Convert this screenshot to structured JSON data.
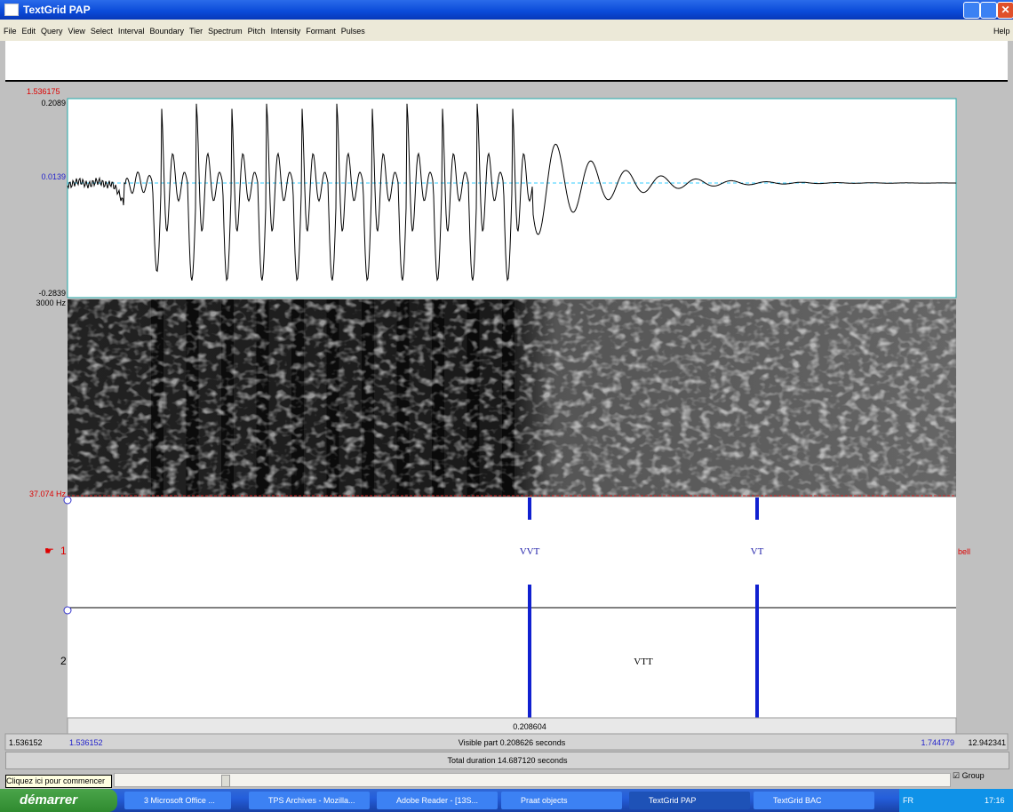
{
  "window": {
    "title": "TextGrid PAP",
    "menu": [
      "File",
      "Edit",
      "Query",
      "View",
      "Select",
      "Interval",
      "Boundary",
      "Tier",
      "Spectrum",
      "Pitch",
      "Intensity",
      "Formant",
      "Pulses"
    ],
    "help": "Help"
  },
  "waveform": {
    "start_time": "1.536175",
    "max": "0.2089",
    "mid": "0.0139",
    "min": "-0.2839"
  },
  "spectrogram": {
    "max": "3000 Hz",
    "min": "37.074 Hz"
  },
  "tiers": [
    {
      "number": "1",
      "name": "bell",
      "points": [
        "VVT",
        "VT"
      ]
    },
    {
      "number": "2",
      "intervals": [
        "VTT"
      ]
    }
  ],
  "selection": "0.208604",
  "time_bar": {
    "window_start": "1.536152",
    "visible_start": "1.536152",
    "visible_part": "Visible part 0.208626 seconds",
    "visible_end": "1.744779",
    "window_end": "12.942341",
    "total": "Total duration 14.687120 seconds"
  },
  "group": "Group",
  "tooltip": "Cliquez ici pour commencer",
  "taskbar": {
    "start": "démarrer",
    "items": [
      "3 Microsoft Office ...",
      "TPS Archives - Mozilla...",
      "Adobe Reader - [13S...",
      "Praat objects",
      "TextGrid PAP",
      "TextGrid BAC"
    ],
    "lang": "FR",
    "clock": "17:16"
  }
}
